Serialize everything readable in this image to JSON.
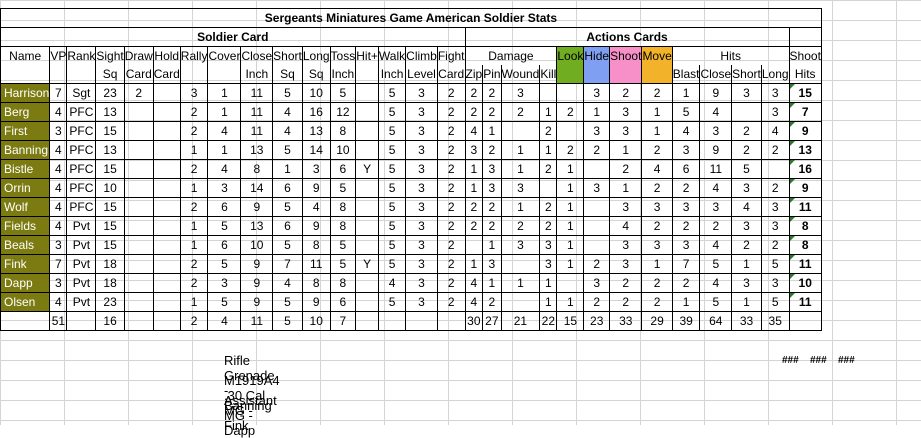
{
  "title": "Sergeants Miniatures Game American Soldier Stats",
  "sections": {
    "soldier_card": "Soldier Card",
    "actions_cards": "Actions Cards"
  },
  "group_headers": {
    "damage": "Damage",
    "hits": "Hits"
  },
  "headers": {
    "name": "Name",
    "vp": "VP",
    "rank": "Rank",
    "sight": [
      "Sight",
      "Sq"
    ],
    "draw": [
      "Draw",
      "Card"
    ],
    "hold": [
      "Hold",
      "Card"
    ],
    "rally": "Rally",
    "cover": "Cover",
    "close": [
      "Close",
      "Inch"
    ],
    "short": [
      "Short",
      "Sq"
    ],
    "long": [
      "Long",
      "Sq"
    ],
    "toss": [
      "Toss",
      "Inch"
    ],
    "hitplus": "Hit+",
    "walk": [
      "Walk",
      "Inch"
    ],
    "climb": [
      "Climb",
      "Level"
    ],
    "fight": [
      "Fight",
      "Card"
    ],
    "zip": "Zip",
    "pin": "Pin",
    "wound": "Wound",
    "kill": "Kill",
    "look": "Look",
    "hide": "Hide",
    "shoot": "Shoot",
    "move": "Move",
    "blast": "Blast",
    "hclose": "Close",
    "hshort": "Short",
    "hlong": "Long",
    "shoot_hits": [
      "Shoot",
      "Hits"
    ]
  },
  "colors": {
    "name_bg": "#7b7b12",
    "look": "#70ad20",
    "hide": "#7f9ff2",
    "shoot": "#f78fc8",
    "move": "#f2b32a"
  },
  "rows": [
    [
      "Harrison",
      "7",
      "Sgt",
      "23",
      "2",
      "",
      "3",
      "1",
      "11",
      "5",
      "10",
      "5",
      "",
      "5",
      "3",
      "2",
      "2",
      "2",
      "3",
      "",
      "",
      "3",
      "2",
      "2",
      "1",
      "9",
      "3",
      "3",
      "15"
    ],
    [
      "Berg",
      "4",
      "PFC",
      "13",
      "",
      "",
      "2",
      "1",
      "11",
      "4",
      "16",
      "12",
      "",
      "5",
      "3",
      "2",
      "2",
      "2",
      "2",
      "1",
      "2",
      "1",
      "3",
      "1",
      "5",
      "4",
      "",
      "3",
      "7"
    ],
    [
      "First",
      "3",
      "PFC",
      "15",
      "",
      "",
      "2",
      "4",
      "11",
      "4",
      "13",
      "8",
      "",
      "5",
      "3",
      "2",
      "4",
      "1",
      "",
      "2",
      "",
      "3",
      "3",
      "1",
      "4",
      "3",
      "2",
      "4",
      "9"
    ],
    [
      "Banning",
      "4",
      "PFC",
      "13",
      "",
      "",
      "1",
      "1",
      "13",
      "5",
      "14",
      "10",
      "",
      "5",
      "3",
      "2",
      "3",
      "2",
      "1",
      "1",
      "2",
      "2",
      "1",
      "2",
      "3",
      "9",
      "2",
      "2",
      "13"
    ],
    [
      "Bistle",
      "4",
      "PFC",
      "15",
      "",
      "",
      "2",
      "4",
      "8",
      "1",
      "3",
      "6",
      "Y",
      "5",
      "3",
      "2",
      "1",
      "3",
      "1",
      "2",
      "1",
      "",
      "2",
      "4",
      "6",
      "11",
      "5",
      "",
      "16"
    ],
    [
      "Orrin",
      "4",
      "PFC",
      "10",
      "",
      "",
      "1",
      "3",
      "14",
      "6",
      "9",
      "5",
      "",
      "5",
      "3",
      "2",
      "1",
      "3",
      "3",
      "",
      "1",
      "3",
      "1",
      "2",
      "2",
      "4",
      "3",
      "2",
      "9"
    ],
    [
      "Wolf",
      "4",
      "PFC",
      "15",
      "",
      "",
      "2",
      "6",
      "9",
      "5",
      "4",
      "8",
      "",
      "5",
      "3",
      "2",
      "2",
      "2",
      "1",
      "2",
      "1",
      "",
      "3",
      "3",
      "3",
      "3",
      "4",
      "3",
      "11"
    ],
    [
      "Fields",
      "4",
      "Pvt",
      "15",
      "",
      "",
      "1",
      "5",
      "13",
      "6",
      "9",
      "8",
      "",
      "5",
      "3",
      "2",
      "2",
      "2",
      "2",
      "2",
      "1",
      "",
      "4",
      "2",
      "2",
      "2",
      "3",
      "3",
      "8"
    ],
    [
      "Beals",
      "3",
      "Pvt",
      "15",
      "",
      "",
      "1",
      "6",
      "10",
      "5",
      "8",
      "5",
      "",
      "5",
      "3",
      "2",
      "",
      "1",
      "3",
      "3",
      "1",
      "",
      "3",
      "3",
      "3",
      "4",
      "2",
      "2",
      "8"
    ],
    [
      "Fink",
      "7",
      "Pvt",
      "18",
      "",
      "",
      "2",
      "5",
      "9",
      "7",
      "11",
      "5",
      "Y",
      "5",
      "3",
      "2",
      "1",
      "3",
      "",
      "3",
      "1",
      "2",
      "3",
      "1",
      "7",
      "5",
      "1",
      "5",
      "11"
    ],
    [
      "Dapp",
      "3",
      "Pvt",
      "18",
      "",
      "",
      "2",
      "3",
      "9",
      "4",
      "8",
      "8",
      "",
      "4",
      "3",
      "2",
      "4",
      "1",
      "1",
      "1",
      "",
      "3",
      "2",
      "2",
      "2",
      "4",
      "3",
      "3",
      "10"
    ],
    [
      "Olsen",
      "4",
      "Pvt",
      "23",
      "",
      "",
      "1",
      "5",
      "9",
      "5",
      "9",
      "6",
      "",
      "5",
      "3",
      "2",
      "4",
      "2",
      "",
      "1",
      "1",
      "2",
      "2",
      "2",
      "1",
      "5",
      "1",
      "5",
      "11"
    ]
  ],
  "totals": {
    "vp": "51",
    "sight": "16",
    "rally": "2",
    "cover": "4",
    "close": "11",
    "short": "5",
    "long": "10",
    "toss": "7",
    "zip": "30",
    "pin": "27",
    "wound": "21",
    "kill": "22",
    "look": "15",
    "hide": "23",
    "shoot": "33",
    "move": "29",
    "blast": "39",
    "hclose": "64",
    "hshort": "33",
    "hlong": "35"
  },
  "notes": [
    "Rifle Grenade - Banning",
    "M1919A4 .30 Cal MG - Fink",
    "Assistant MG - Dapp"
  ],
  "overflow": [
    "###",
    "###",
    "###"
  ]
}
